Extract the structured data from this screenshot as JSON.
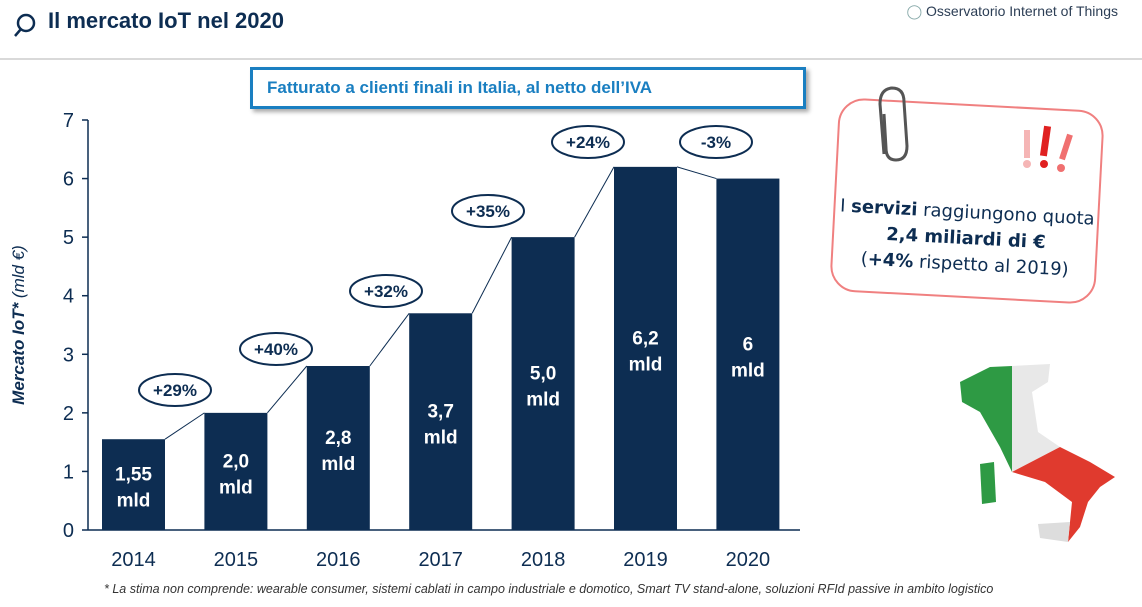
{
  "header": {
    "title": "Il mercato IoT nel 2020",
    "brand": "Osservatorio Internet of Things"
  },
  "subtitle": "Fatturato a clienti finali in Italia, al netto dell’IVA",
  "note": {
    "p1": "I ",
    "b1": "servizi",
    "p2": " raggiungono quota ",
    "b2": "2,4 miliardi di €",
    "p3": "(",
    "b3": "+4%",
    "p4": " rispetto al 2019)"
  },
  "footnote": "* La stima non comprende: wearable consumer, sistemi cablati in campo industriale e domotico, Smart TV stand-alone, soluzioni RFId passive in ambito logistico",
  "colors": {
    "bar": "#0d2d52",
    "accent": "#1a7fc1",
    "note_border": "#f08080"
  },
  "chart_data": {
    "type": "bar",
    "ylabel_bold": "Mercato IoT*",
    "ylabel_unit": " (mld €)",
    "ylim": [
      0,
      7
    ],
    "yticks": [
      "0",
      "1",
      "2",
      "3",
      "4",
      "5",
      "6",
      "7"
    ],
    "categories": [
      "2014",
      "2015",
      "2016",
      "2017",
      "2018",
      "2019",
      "2020"
    ],
    "values": [
      1.55,
      2.0,
      2.8,
      3.7,
      5.0,
      6.2,
      6.0
    ],
    "data_labels": [
      [
        "1,55",
        "mld"
      ],
      [
        "2,0",
        "mld"
      ],
      [
        "2,8",
        "mld"
      ],
      [
        "3,7",
        "mld"
      ],
      [
        "5,0",
        "mld"
      ],
      [
        "6,2",
        "mld"
      ],
      [
        "6",
        "mld"
      ]
    ],
    "growth_labels": [
      "+29%",
      "+40%",
      "+32%",
      "+35%",
      "+24%",
      "-3%"
    ]
  }
}
